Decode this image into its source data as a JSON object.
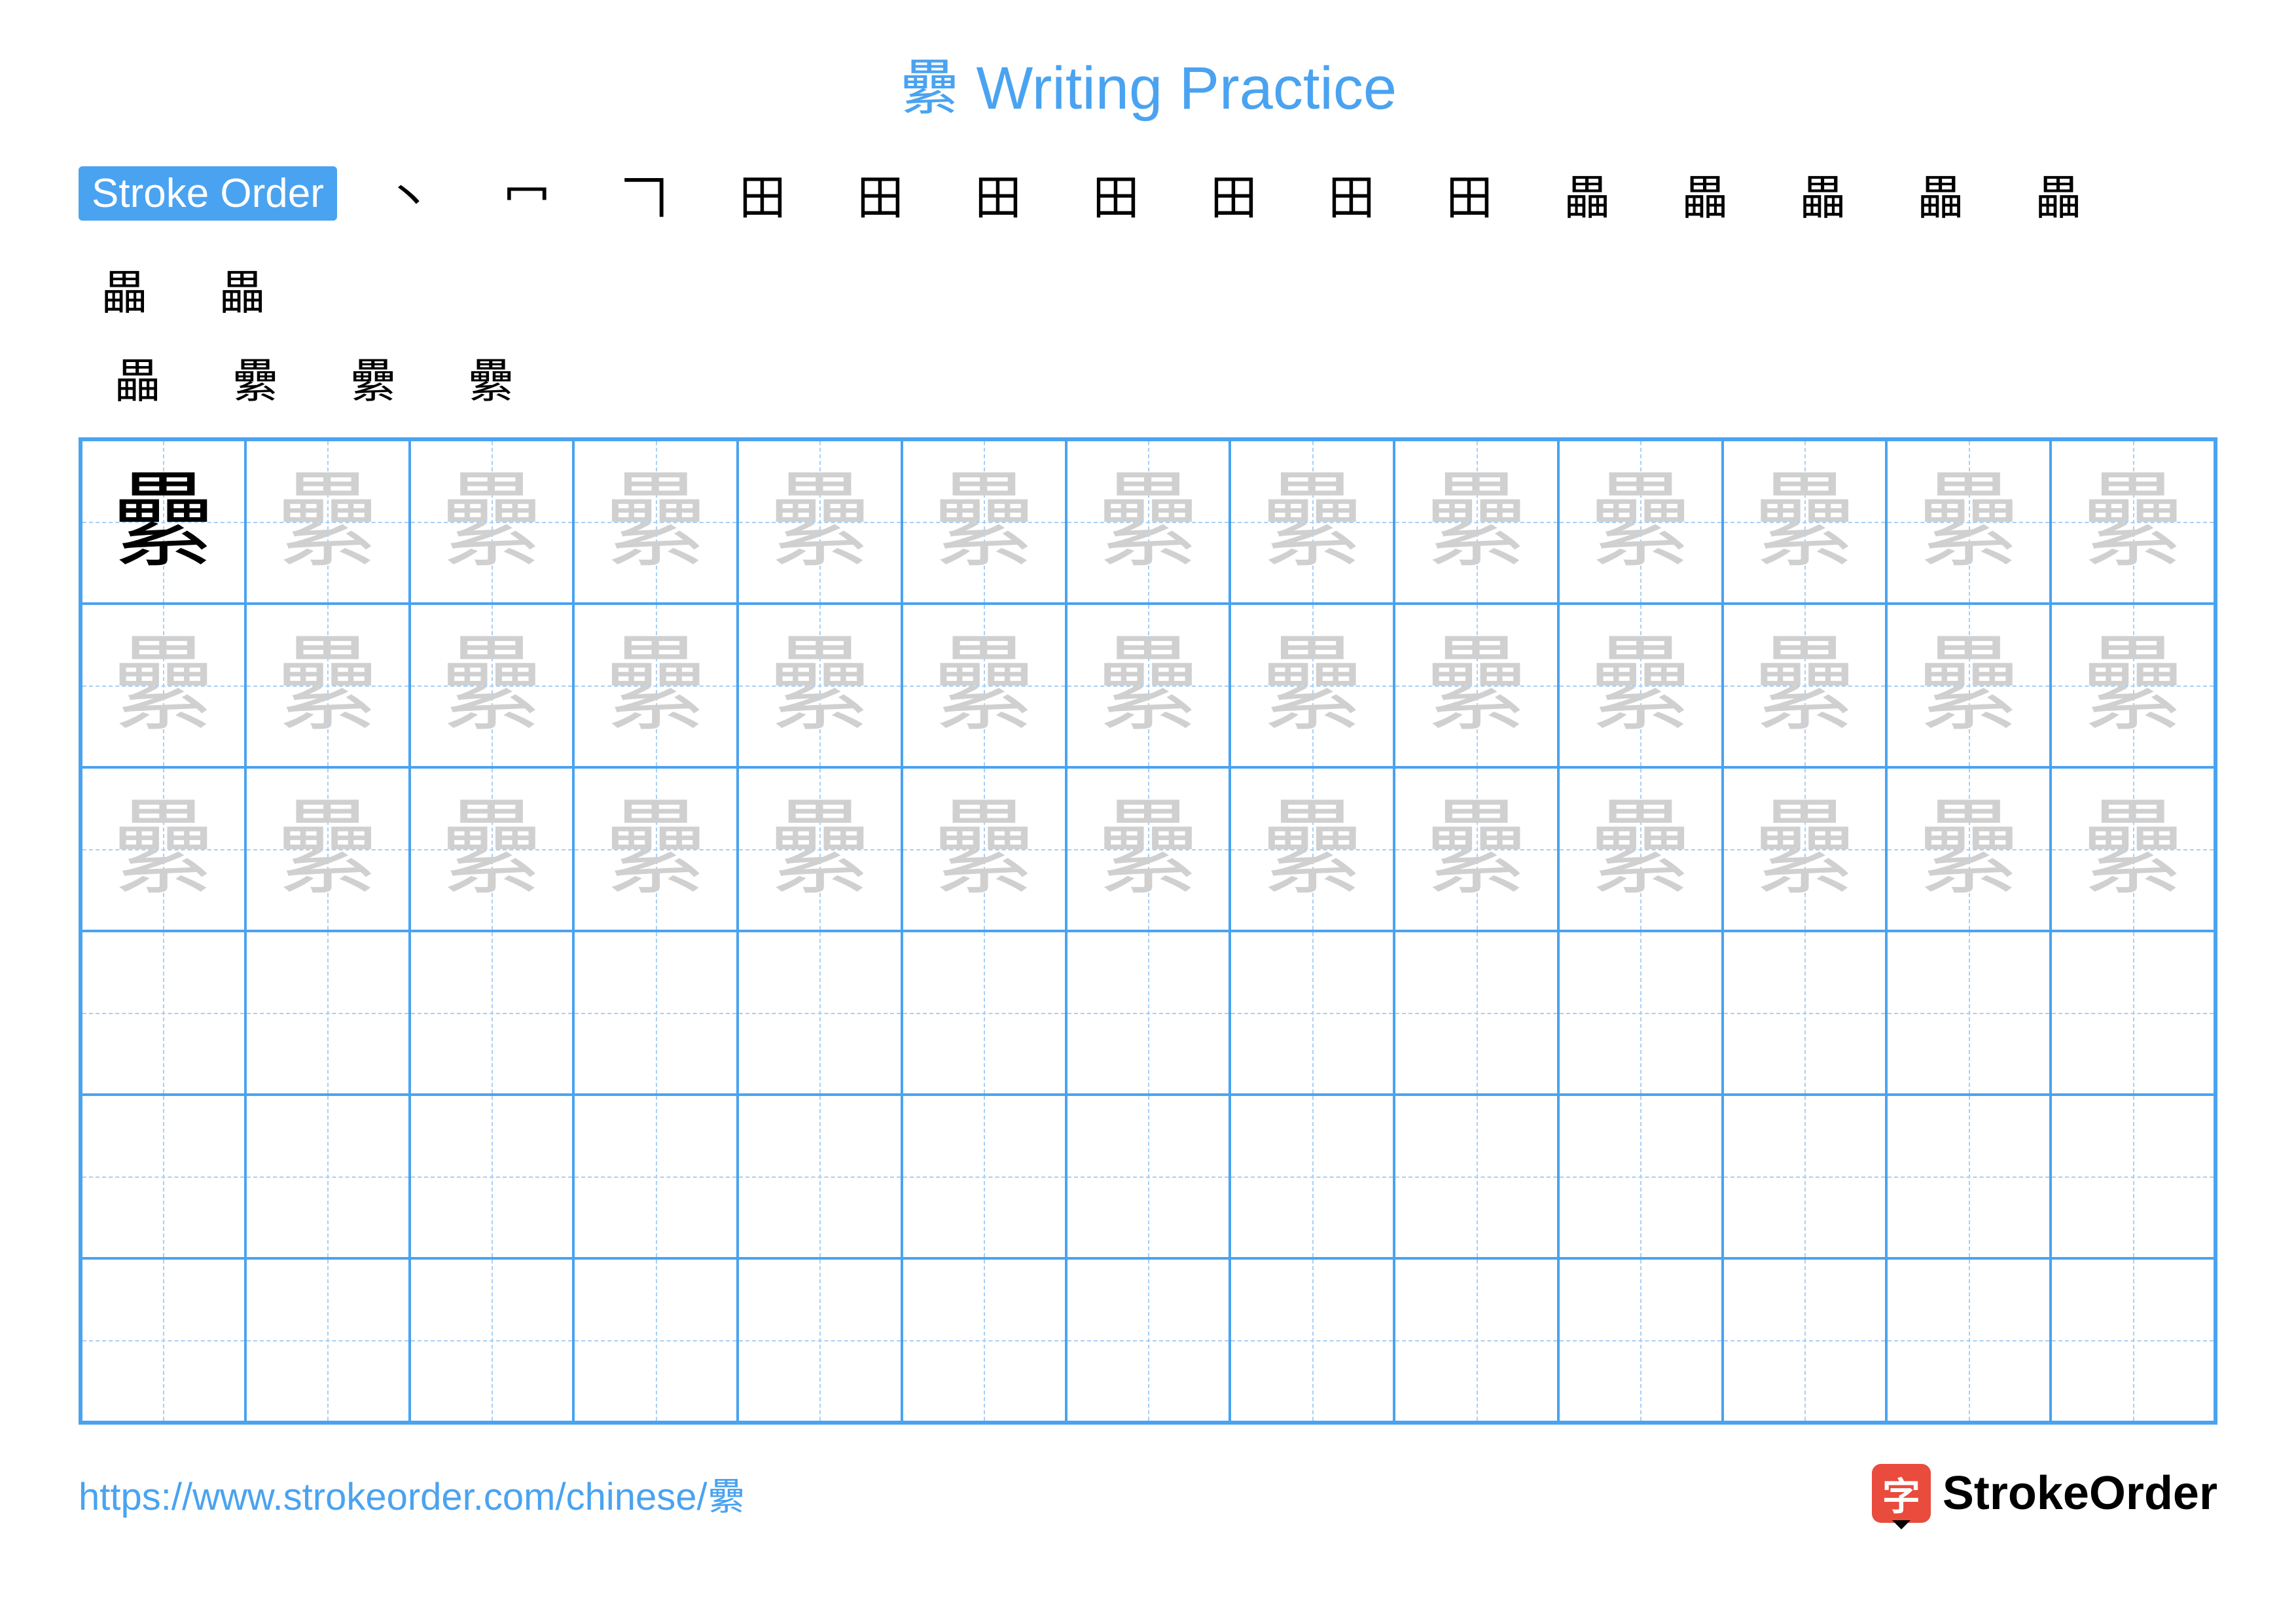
{
  "title": {
    "character": "纍",
    "rest": " Writing Practice"
  },
  "colors": {
    "accent": "#4aa3f0",
    "grid_border": "#4aa3f0",
    "guide_line": "#a8d0f5",
    "trace_char": "#d0d0d0",
    "logo_bg": "#e94b3c",
    "url_color": "#4aa3f0"
  },
  "stroke_order": {
    "label": "Stroke Order",
    "steps_row1": [
      "丶",
      "冖",
      "𠃍",
      "田",
      "田",
      "田",
      "田",
      "田",
      "田",
      "田",
      "畾",
      "畾",
      "畾",
      "畾",
      "畾",
      "畾",
      "畾"
    ],
    "steps_row2": [
      "畾",
      "纍",
      "纍",
      "纍"
    ]
  },
  "grid": {
    "columns": 13,
    "rows": 6,
    "trace_rows": 3,
    "solid_cell": {
      "row": 0,
      "col": 0
    },
    "character": "纍"
  },
  "footer": {
    "url": "https://www.strokeorder.com/chinese/纍",
    "logo_char": "字",
    "logo_text": "StrokeOrder"
  }
}
